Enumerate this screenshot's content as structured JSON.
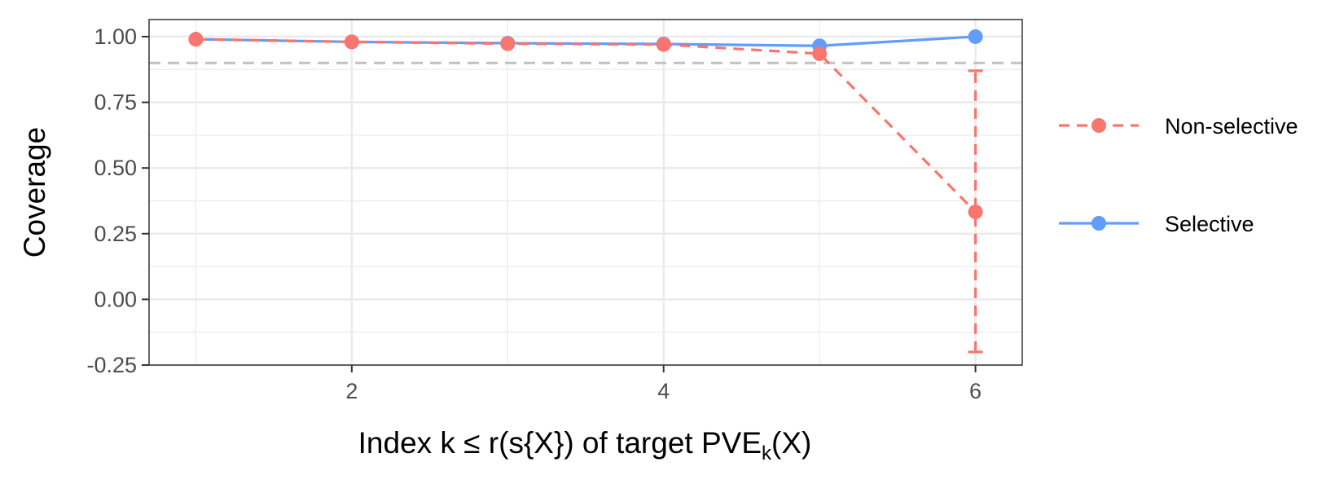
{
  "chart_data": {
    "type": "line",
    "title": "",
    "xlabel": "Index k ≤ r(s{X}) of target PVE",
    "xlabel_subscript": "k",
    "xlabel_tail": "(X)",
    "ylabel": "Coverage",
    "xlim": [
      0.7,
      6.3
    ],
    "ylim": [
      -0.25,
      1.065
    ],
    "x_ticks": [
      2,
      4,
      6
    ],
    "y_ticks": [
      -0.25,
      0.0,
      0.25,
      0.5,
      0.75,
      1.0
    ],
    "y_tick_labels": [
      "-0.25",
      "0.00",
      "0.25",
      "0.50",
      "0.75",
      "1.00"
    ],
    "grid": true,
    "reference_line": {
      "y": 0.9,
      "style": "dashed",
      "color": "#c2c2c2"
    },
    "legend_position": "right",
    "series": [
      {
        "name": "Non-selective",
        "color": "#f8766d",
        "linestyle": "dashed",
        "x": [
          1,
          2,
          3,
          4,
          5,
          6
        ],
        "y": [
          0.99,
          0.98,
          0.973,
          0.97,
          0.935,
          0.333
        ],
        "error_bar": {
          "x": 6,
          "low": -0.2,
          "high": 0.87
        }
      },
      {
        "name": "Selective",
        "color": "#619cff",
        "linestyle": "solid",
        "x": [
          1,
          2,
          3,
          4,
          5,
          6
        ],
        "y": [
          0.99,
          0.98,
          0.975,
          0.972,
          0.965,
          1.0
        ]
      }
    ]
  }
}
